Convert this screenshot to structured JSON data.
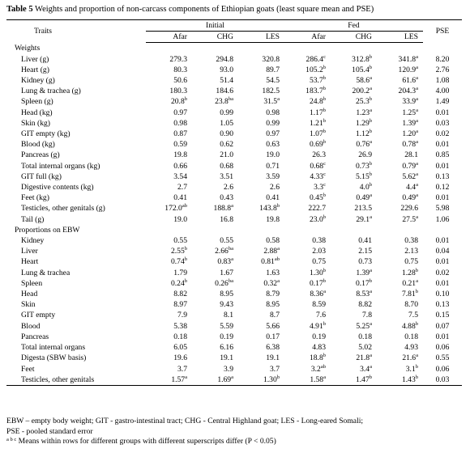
{
  "title": {
    "label": "Table 5",
    "text": " Weights and proportion of non-carcass components of Ethiopian goats (least square mean and PSE)"
  },
  "header": {
    "traits": "Traits",
    "initial": "Initial",
    "fed": "Fed",
    "pse": "PSE",
    "breeds": [
      "Afar",
      "CHG",
      "LES",
      "Afar",
      "CHG",
      "LES"
    ]
  },
  "sections": [
    {
      "label": "Weights",
      "rows": [
        {
          "trait": "Liver (g)",
          "vals": [
            [
              "279.3",
              ""
            ],
            [
              "294.8",
              ""
            ],
            [
              "320.8",
              ""
            ],
            [
              "286.4",
              "c"
            ],
            [
              "312.8",
              "b"
            ],
            [
              "341.8",
              "a"
            ]
          ],
          "pse": "8.20"
        },
        {
          "trait": "Heart (g)",
          "vals": [
            [
              "80.3",
              ""
            ],
            [
              "93.0",
              ""
            ],
            [
              "89.7",
              ""
            ],
            [
              "105.2",
              "b"
            ],
            [
              "105.4",
              "b"
            ],
            [
              "120.9",
              "a"
            ]
          ],
          "pse": "2.76"
        },
        {
          "trait": "Kidney (g)",
          "vals": [
            [
              "50.6",
              ""
            ],
            [
              "51.4",
              ""
            ],
            [
              "54.5",
              ""
            ],
            [
              "53.7",
              "b"
            ],
            [
              "58.6",
              "a"
            ],
            [
              "61.6",
              "a"
            ]
          ],
          "pse": "1.08"
        },
        {
          "trait": "Lung & trachea (g)",
          "vals": [
            [
              "180.3",
              ""
            ],
            [
              "184.6",
              ""
            ],
            [
              "182.5",
              ""
            ],
            [
              "183.7",
              "b"
            ],
            [
              "200.2",
              "a"
            ],
            [
              "204.3",
              "a"
            ]
          ],
          "pse": "4.00"
        },
        {
          "trait": "Spleen (g)",
          "vals": [
            [
              "20.8",
              "b"
            ],
            [
              "23.8",
              "ba"
            ],
            [
              "31.5",
              "a"
            ],
            [
              "24.8",
              "b"
            ],
            [
              "25.3",
              "b"
            ],
            [
              "33.9",
              "a"
            ]
          ],
          "pse": "1.49"
        },
        {
          "trait": "Head (kg)",
          "vals": [
            [
              "0.97",
              ""
            ],
            [
              "0.99",
              ""
            ],
            [
              "0.98",
              ""
            ],
            [
              "1.17",
              "b"
            ],
            [
              "1.23",
              "a"
            ],
            [
              "1.25",
              "a"
            ]
          ],
          "pse": "0.01"
        },
        {
          "trait": "Skin (kg)",
          "vals": [
            [
              "0.98",
              ""
            ],
            [
              "1.05",
              ""
            ],
            [
              "0.99",
              ""
            ],
            [
              "1.21",
              "b"
            ],
            [
              "1.29",
              "b"
            ],
            [
              "1.39",
              "a"
            ]
          ],
          "pse": "0.03"
        },
        {
          "trait": "GIT empty (kg)",
          "vals": [
            [
              "0.87",
              ""
            ],
            [
              "0.90",
              ""
            ],
            [
              "0.97",
              ""
            ],
            [
              "1.07",
              "b"
            ],
            [
              "1.12",
              "b"
            ],
            [
              "1.20",
              "a"
            ]
          ],
          "pse": "0.02"
        },
        {
          "trait": "Blood (kg)",
          "vals": [
            [
              "0.59",
              ""
            ],
            [
              "0.62",
              ""
            ],
            [
              "0.63",
              ""
            ],
            [
              "0.69",
              "b"
            ],
            [
              "0.76",
              "a"
            ],
            [
              "0.78",
              "a"
            ]
          ],
          "pse": "0.01"
        },
        {
          "trait": "Pancreas (g)",
          "vals": [
            [
              "19.8",
              ""
            ],
            [
              "21.0",
              ""
            ],
            [
              "19.0",
              ""
            ],
            [
              "26.3",
              ""
            ],
            [
              "26.9",
              ""
            ],
            [
              "28.1",
              ""
            ]
          ],
          "pse": "0.85"
        },
        {
          "trait": "Total internal organs (kg)",
          "vals": [
            [
              "0.66",
              ""
            ],
            [
              "0.68",
              ""
            ],
            [
              "0.71",
              ""
            ],
            [
              "0.68",
              "c"
            ],
            [
              "0.73",
              "b"
            ],
            [
              "0.79",
              "a"
            ]
          ],
          "pse": "0.01"
        },
        {
          "trait": "GIT full (kg)",
          "vals": [
            [
              "3.54",
              ""
            ],
            [
              "3.51",
              ""
            ],
            [
              "3.59",
              ""
            ],
            [
              "4.33",
              "c"
            ],
            [
              "5.15",
              "b"
            ],
            [
              "5.62",
              "a"
            ]
          ],
          "pse": "0.13"
        },
        {
          "trait": "Digestive contents (kg)",
          "vals": [
            [
              "2.7",
              ""
            ],
            [
              "2.6",
              ""
            ],
            [
              "2.6",
              ""
            ],
            [
              "3.3",
              "c"
            ],
            [
              "4.0",
              "b"
            ],
            [
              "4.4",
              "a"
            ]
          ],
          "pse": "0.12"
        },
        {
          "trait": "Feet (kg)",
          "vals": [
            [
              "0.41",
              ""
            ],
            [
              "0.43",
              ""
            ],
            [
              "0.41",
              ""
            ],
            [
              "0.45",
              "b"
            ],
            [
              "0.49",
              "a"
            ],
            [
              "0.49",
              "a"
            ]
          ],
          "pse": "0.01"
        },
        {
          "trait": "Testicles, other genitals (g)",
          "vals": [
            [
              "172.0",
              "ab"
            ],
            [
              "188.8",
              "a"
            ],
            [
              "143.8",
              "b"
            ],
            [
              "222.7",
              ""
            ],
            [
              "213.5",
              ""
            ],
            [
              "229.6",
              ""
            ]
          ],
          "pse": "5.98"
        },
        {
          "trait": "Tail (g)",
          "vals": [
            [
              "19.0",
              ""
            ],
            [
              "16.8",
              ""
            ],
            [
              "19.8",
              ""
            ],
            [
              "23.0",
              "b"
            ],
            [
              "29.1",
              "a"
            ],
            [
              "27.5",
              "a"
            ]
          ],
          "pse": "1.06"
        }
      ]
    },
    {
      "label": "Proportions on EBW",
      "rows": [
        {
          "trait": "Kidney",
          "vals": [
            [
              "0.55",
              ""
            ],
            [
              "0.55",
              ""
            ],
            [
              "0.58",
              ""
            ],
            [
              "0.38",
              ""
            ],
            [
              "0.41",
              ""
            ],
            [
              "0.38",
              ""
            ]
          ],
          "pse": "0.01"
        },
        {
          "trait": "Liver",
          "vals": [
            [
              "2.55",
              "b"
            ],
            [
              "2.66",
              "ba"
            ],
            [
              "2.88",
              "a"
            ],
            [
              "2.03",
              ""
            ],
            [
              "2.15",
              ""
            ],
            [
              "2.13",
              ""
            ]
          ],
          "pse": "0.04"
        },
        {
          "trait": "Heart",
          "vals": [
            [
              "0.74",
              "b"
            ],
            [
              "0.83",
              "a"
            ],
            [
              "0.81",
              "ab"
            ],
            [
              "0.75",
              ""
            ],
            [
              "0.73",
              ""
            ],
            [
              "0.75",
              ""
            ]
          ],
          "pse": "0.01"
        },
        {
          "trait": "Lung & trachea",
          "vals": [
            [
              "1.79",
              ""
            ],
            [
              "1.67",
              ""
            ],
            [
              "1.63",
              ""
            ],
            [
              "1.30",
              "b"
            ],
            [
              "1.39",
              "a"
            ],
            [
              "1.28",
              "b"
            ]
          ],
          "pse": "0.02"
        },
        {
          "trait": "Spleen",
          "vals": [
            [
              "0.24",
              "b"
            ],
            [
              "0.26",
              "ba"
            ],
            [
              "0.32",
              "a"
            ],
            [
              "0.17",
              "b"
            ],
            [
              "0.17",
              "b"
            ],
            [
              "0.21",
              "a"
            ]
          ],
          "pse": "0.01"
        },
        {
          "trait": "Head",
          "vals": [
            [
              "8.82",
              ""
            ],
            [
              "8.95",
              ""
            ],
            [
              "8.79",
              ""
            ],
            [
              "8.36",
              "a"
            ],
            [
              "8.53",
              "a"
            ],
            [
              "7.81",
              "b"
            ]
          ],
          "pse": "0.10"
        },
        {
          "trait": "Skin",
          "vals": [
            [
              "8.97",
              ""
            ],
            [
              "9.43",
              ""
            ],
            [
              "8.95",
              ""
            ],
            [
              "8.59",
              ""
            ],
            [
              "8.82",
              ""
            ],
            [
              "8.70",
              ""
            ]
          ],
          "pse": "0.13"
        },
        {
          "trait": "GIT empty",
          "vals": [
            [
              "7.9",
              ""
            ],
            [
              "8.1",
              ""
            ],
            [
              "8.7",
              ""
            ],
            [
              "7.6",
              ""
            ],
            [
              "7.8",
              ""
            ],
            [
              "7.5",
              ""
            ]
          ],
          "pse": "0.15"
        },
        {
          "trait": "Blood",
          "vals": [
            [
              "5.38",
              ""
            ],
            [
              "5.59",
              ""
            ],
            [
              "5.66",
              ""
            ],
            [
              "4.91",
              "b"
            ],
            [
              "5.25",
              "a"
            ],
            [
              "4.88",
              "b"
            ]
          ],
          "pse": "0.07"
        },
        {
          "trait": "Pancreas",
          "vals": [
            [
              "0.18",
              ""
            ],
            [
              "0.19",
              ""
            ],
            [
              "0.17",
              ""
            ],
            [
              "0.19",
              ""
            ],
            [
              "0.18",
              ""
            ],
            [
              "0.18",
              ""
            ]
          ],
          "pse": "0.01"
        },
        {
          "trait": "Total internal organs",
          "vals": [
            [
              "6.05",
              ""
            ],
            [
              "6.16",
              ""
            ],
            [
              "6.38",
              ""
            ],
            [
              "4.83",
              ""
            ],
            [
              "5.02",
              ""
            ],
            [
              "4.93",
              ""
            ]
          ],
          "pse": "0.06"
        },
        {
          "trait": "Digesta (SBW basis)",
          "vals": [
            [
              "19.6",
              ""
            ],
            [
              "19.1",
              ""
            ],
            [
              "19.1",
              ""
            ],
            [
              "18.8",
              "b"
            ],
            [
              "21.8",
              "a"
            ],
            [
              "21.6",
              "a"
            ]
          ],
          "pse": "0.55"
        },
        {
          "trait": "Feet",
          "vals": [
            [
              "3.7",
              ""
            ],
            [
              "3.9",
              ""
            ],
            [
              "3.7",
              ""
            ],
            [
              "3.2",
              "ab"
            ],
            [
              "3.4",
              "a"
            ],
            [
              "3.1",
              "b"
            ]
          ],
          "pse": "0.06"
        },
        {
          "trait": "Testicles, other genitals",
          "vals": [
            [
              "1.57",
              "a"
            ],
            [
              "1.69",
              "a"
            ],
            [
              "1.30",
              "b"
            ],
            [
              "1.58",
              "a"
            ],
            [
              "1.47",
              "b"
            ],
            [
              "1.43",
              "b"
            ]
          ],
          "pse": "0.03"
        }
      ]
    }
  ],
  "footnotes": {
    "line1": "EBW – empty body weight; GIT - gastro-intestinal tract; CHG - Central Highland goat; LES - Long-eared Somali;",
    "line2": "PSE - pooled standard error",
    "line3_sup": "a b c",
    "line3": " Means within rows for different groups with different superscripts differ (P < 0.05)"
  }
}
